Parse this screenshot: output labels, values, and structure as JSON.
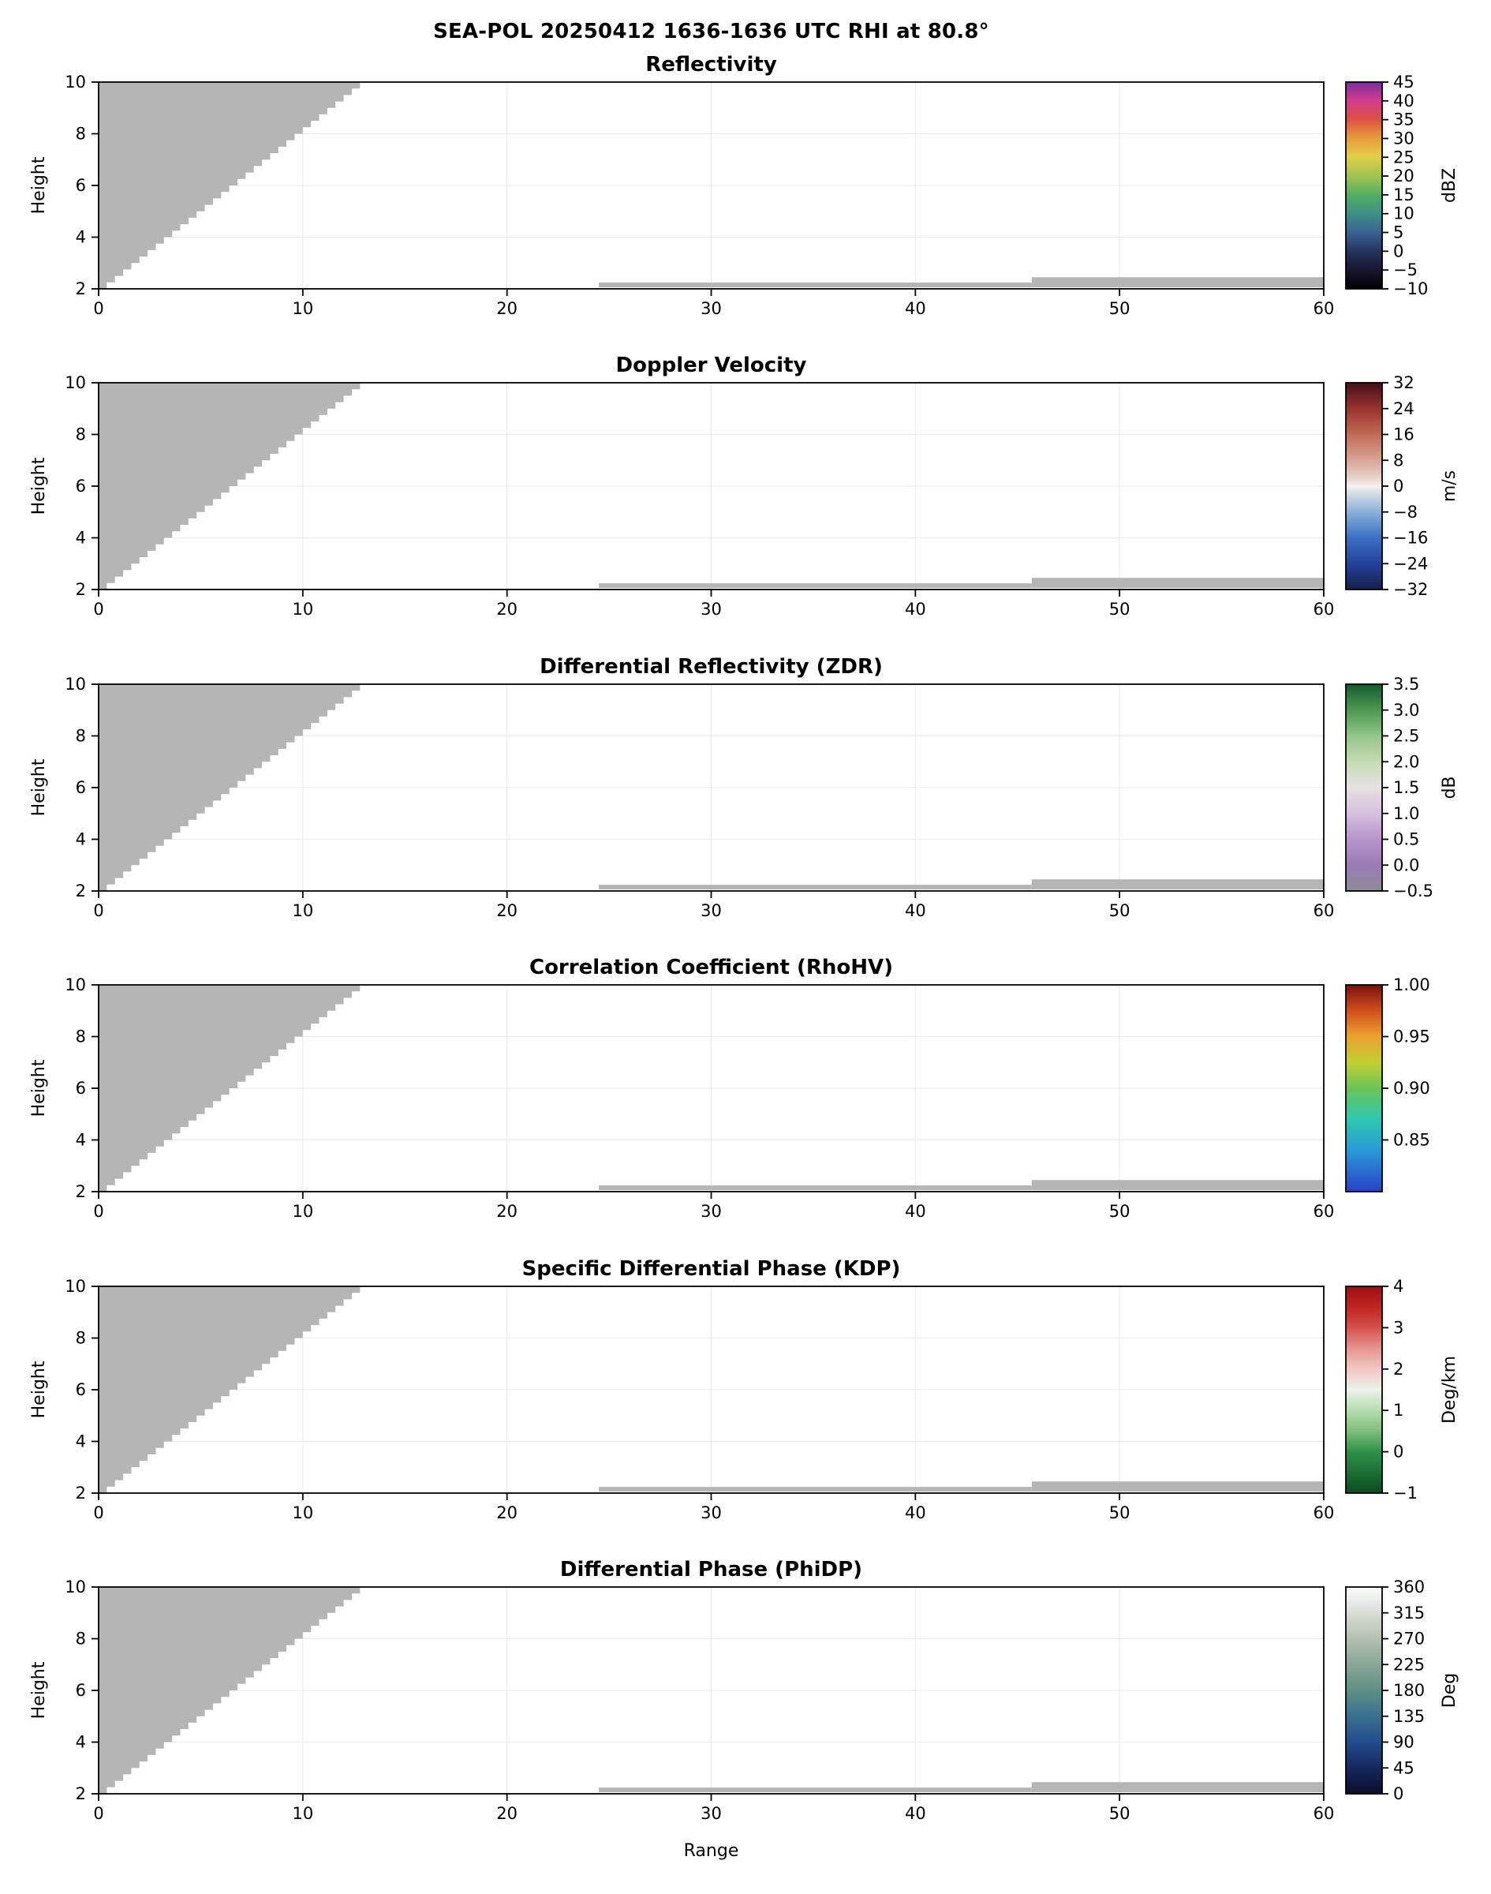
{
  "figure": {
    "title": "SEA-POL 20250412 1636-1636 UTC RHI at 80.8°",
    "background_color": "#ffffff",
    "mask_color": "#b5b5b5",
    "axis_color": "#000000",
    "grid_color": "#ebebeb"
  },
  "chart_data": {
    "type": "heatmap",
    "description": "Six stacked RHI radar cross-section panels sharing identical axes; all plotted echo regions are rendered as gray masked areas.",
    "x": {
      "lim": [
        0,
        60
      ],
      "ticks": [
        0,
        10,
        20,
        30,
        40,
        50,
        60
      ],
      "label": "Range"
    },
    "y": {
      "lim": [
        2,
        10
      ],
      "ticks": [
        2,
        4,
        6,
        8,
        10
      ],
      "label": "Height"
    },
    "masked_regions": {
      "wedge": {
        "y_min": 2,
        "y_max": 10,
        "edge_slope": 1.6,
        "step": 0.25
      },
      "strips": [
        {
          "x0": 24.5,
          "x1": 45.7,
          "y0": 2.06,
          "y1": 2.24
        },
        {
          "x0": 45.7,
          "x1": 60.0,
          "y0": 2.06,
          "y1": 2.45
        }
      ]
    },
    "panels": [
      {
        "title": "Reflectivity",
        "colorbar": {
          "unit": "dBZ",
          "vmin": -10,
          "vmax": 45,
          "ticks": [
            45,
            40,
            35,
            30,
            25,
            20,
            15,
            10,
            5,
            0,
            -5,
            -10
          ],
          "tick_labels": [
            "45",
            "40",
            "35",
            "30",
            "25",
            "20",
            "15",
            "10",
            "5",
            "0",
            "−5",
            "−10"
          ],
          "stops": [
            [
              0,
              "#000000"
            ],
            [
              0.09,
              "#16162f"
            ],
            [
              0.18,
              "#25325f"
            ],
            [
              0.27,
              "#39618f"
            ],
            [
              0.36,
              "#3e8e88"
            ],
            [
              0.45,
              "#4fae62"
            ],
            [
              0.54,
              "#9cc24e"
            ],
            [
              0.64,
              "#e2cf49"
            ],
            [
              0.73,
              "#e89b3c"
            ],
            [
              0.82,
              "#dc5044"
            ],
            [
              0.91,
              "#d23c8e"
            ],
            [
              1,
              "#7a2ea0"
            ]
          ]
        }
      },
      {
        "title": "Doppler Velocity",
        "colorbar": {
          "unit": "m/s",
          "vmin": -32,
          "vmax": 32,
          "ticks": [
            32,
            24,
            16,
            8,
            0,
            -8,
            -16,
            -24,
            -32
          ],
          "tick_labels": [
            "32",
            "24",
            "16",
            "8",
            "0",
            "−8",
            "−16",
            "−24",
            "−32"
          ],
          "stops": [
            [
              0,
              "#16204a"
            ],
            [
              0.12,
              "#22419b"
            ],
            [
              0.25,
              "#3b6fc3"
            ],
            [
              0.37,
              "#86aed8"
            ],
            [
              0.46,
              "#cfdbe4"
            ],
            [
              0.5,
              "#f4f2f0"
            ],
            [
              0.54,
              "#e9d2ca"
            ],
            [
              0.63,
              "#d8a394"
            ],
            [
              0.75,
              "#c26a55"
            ],
            [
              0.88,
              "#97302f"
            ],
            [
              1,
              "#43101a"
            ]
          ]
        }
      },
      {
        "title": "Differential Reflectivity (ZDR)",
        "colorbar": {
          "unit": "dB",
          "vmin": -0.5,
          "vmax": 3.5,
          "ticks": [
            3.5,
            3.0,
            2.5,
            2.0,
            1.5,
            1.0,
            0.5,
            0.0,
            -0.5
          ],
          "tick_labels": [
            "3.5",
            "3.0",
            "2.5",
            "2.0",
            "1.5",
            "1.0",
            "0.5",
            "0.0",
            "−0.5"
          ],
          "stops": [
            [
              0,
              "#8d8d97"
            ],
            [
              0.12,
              "#9a7ab4"
            ],
            [
              0.25,
              "#b794cc"
            ],
            [
              0.37,
              "#d5bfdf"
            ],
            [
              0.5,
              "#e7e1e2"
            ],
            [
              0.62,
              "#c7dcb5"
            ],
            [
              0.75,
              "#94c489"
            ],
            [
              0.87,
              "#4f9a52"
            ],
            [
              1,
              "#145a30"
            ]
          ]
        }
      },
      {
        "title": "Correlation Coefficient (RhoHV)",
        "colorbar": {
          "unit": "",
          "vmin": 0.8,
          "vmax": 1.0,
          "ticks": [
            1.0,
            0.95,
            0.9,
            0.85
          ],
          "tick_labels": [
            "1.00",
            "0.95",
            "0.90",
            "0.85"
          ],
          "stops": [
            [
              0,
              "#2742c8"
            ],
            [
              0.2,
              "#2a99d8"
            ],
            [
              0.35,
              "#2ec8af"
            ],
            [
              0.5,
              "#6ac455"
            ],
            [
              0.62,
              "#c0d033"
            ],
            [
              0.75,
              "#eca22e"
            ],
            [
              0.87,
              "#d4521e"
            ],
            [
              1,
              "#7a0f0b"
            ]
          ]
        }
      },
      {
        "title": "Specific Differential Phase (KDP)",
        "colorbar": {
          "unit": "Deg/km",
          "vmin": -1,
          "vmax": 4,
          "ticks": [
            4,
            3,
            2,
            1,
            0,
            -1
          ],
          "tick_labels": [
            "4",
            "3",
            "2",
            "1",
            "0",
            "−1"
          ],
          "stops": [
            [
              0,
              "#0b4c20"
            ],
            [
              0.2,
              "#2f9148"
            ],
            [
              0.3,
              "#7cbe7c"
            ],
            [
              0.4,
              "#b6dcb0"
            ],
            [
              0.5,
              "#ecf2ea"
            ],
            [
              0.6,
              "#f0c8c4"
            ],
            [
              0.7,
              "#e89490"
            ],
            [
              0.8,
              "#d4524c"
            ],
            [
              0.9,
              "#c02420"
            ],
            [
              1,
              "#9e0e14"
            ]
          ]
        }
      },
      {
        "title": "Differential Phase (PhiDP)",
        "colorbar": {
          "unit": "Deg",
          "vmin": 0,
          "vmax": 360,
          "ticks": [
            360,
            315,
            270,
            225,
            180,
            135,
            90,
            45,
            0
          ],
          "tick_labels": [
            "360",
            "315",
            "270",
            "225",
            "180",
            "135",
            "90",
            "45",
            "0"
          ],
          "stops": [
            [
              0,
              "#0c0c2c"
            ],
            [
              0.125,
              "#15275f"
            ],
            [
              0.25,
              "#234c8e"
            ],
            [
              0.375,
              "#3a6f8e"
            ],
            [
              0.5,
              "#5d8f85"
            ],
            [
              0.625,
              "#8aa795"
            ],
            [
              0.75,
              "#b3c0b0"
            ],
            [
              0.875,
              "#d8ded6"
            ],
            [
              1,
              "#fcfcfa"
            ]
          ]
        }
      }
    ]
  }
}
